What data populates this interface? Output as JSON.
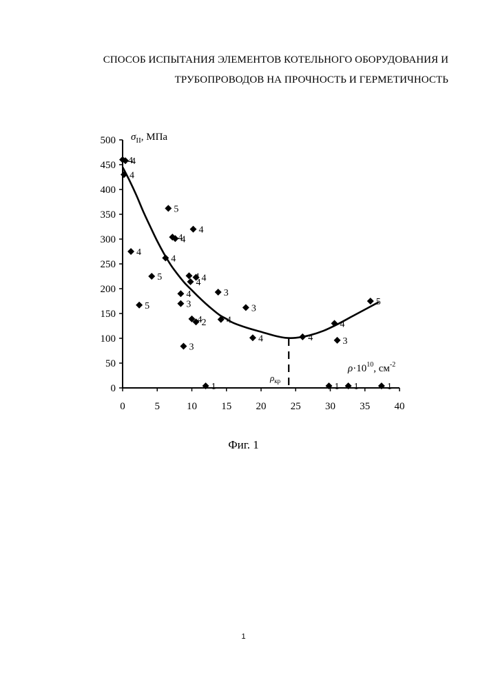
{
  "document": {
    "title_line1": "СПОСОБ ИСПЫТАНИЯ ЭЛЕМЕНТОВ КОТЕЛЬНОГО ОБОРУДОВАНИЯ И",
    "title_line2": "ТРУБОПРОВОДОВ НА ПРОЧНОСТЬ И ГЕРМЕТИЧНОСТЬ",
    "caption": "Фиг. 1",
    "page_number": "1"
  },
  "chart_data": {
    "type": "scatter",
    "title": "",
    "ylabel_symbol": "σ",
    "ylabel_subscript": "II",
    "ylabel_unit": ", МПа",
    "xlabel_symbol": "ρ",
    "xlabel_mult": "·10",
    "xlabel_exp": "10",
    "xlabel_unit": ", см",
    "xlabel_unit_exp": "-2",
    "critical_label": "ρ",
    "critical_label_sub": "кр",
    "critical_x": 24,
    "xlim": [
      0,
      40
    ],
    "ylim": [
      0,
      500
    ],
    "xticks": [
      "0",
      "5",
      "10",
      "15",
      "20",
      "25",
      "30",
      "35",
      "40"
    ],
    "yticks": [
      "0",
      "50",
      "100",
      "150",
      "200",
      "250",
      "300",
      "350",
      "400",
      "450",
      "500"
    ],
    "grid": false,
    "points": [
      {
        "x": 0.0,
        "y": 460,
        "label": "4"
      },
      {
        "x": 0.4,
        "y": 458,
        "label": "4"
      },
      {
        "x": 0.2,
        "y": 430,
        "label": "4"
      },
      {
        "x": 1.2,
        "y": 275,
        "label": "4"
      },
      {
        "x": 2.4,
        "y": 167,
        "label": "5"
      },
      {
        "x": 4.2,
        "y": 225,
        "label": "5"
      },
      {
        "x": 6.2,
        "y": 262,
        "label": "4"
      },
      {
        "x": 6.6,
        "y": 362,
        "label": "5"
      },
      {
        "x": 7.2,
        "y": 304,
        "label": "4"
      },
      {
        "x": 7.6,
        "y": 301,
        "label": "4"
      },
      {
        "x": 8.4,
        "y": 190,
        "label": "4"
      },
      {
        "x": 8.4,
        "y": 170,
        "label": "3"
      },
      {
        "x": 8.8,
        "y": 84,
        "label": "3"
      },
      {
        "x": 9.6,
        "y": 226,
        "label": "4"
      },
      {
        "x": 9.8,
        "y": 214,
        "label": "4"
      },
      {
        "x": 10.0,
        "y": 139,
        "label": "4"
      },
      {
        "x": 10.2,
        "y": 320,
        "label": "4"
      },
      {
        "x": 10.6,
        "y": 223,
        "label": "4"
      },
      {
        "x": 10.6,
        "y": 133,
        "label": "2"
      },
      {
        "x": 12.0,
        "y": 4,
        "label": "1"
      },
      {
        "x": 13.8,
        "y": 193,
        "label": "3"
      },
      {
        "x": 14.2,
        "y": 138,
        "label": "4"
      },
      {
        "x": 17.8,
        "y": 162,
        "label": "3"
      },
      {
        "x": 18.8,
        "y": 101,
        "label": "4"
      },
      {
        "x": 26.0,
        "y": 103,
        "label": "4"
      },
      {
        "x": 29.8,
        "y": 4,
        "label": "1"
      },
      {
        "x": 30.6,
        "y": 130,
        "label": "4"
      },
      {
        "x": 31.0,
        "y": 96,
        "label": "3"
      },
      {
        "x": 32.6,
        "y": 4,
        "label": "1"
      },
      {
        "x": 35.8,
        "y": 175,
        "label": "5"
      },
      {
        "x": 37.4,
        "y": 4,
        "label": "1"
      }
    ],
    "trend": {
      "x": [
        0.0,
        1.0,
        2.0,
        3.0,
        4.0,
        5.0,
        6.0,
        7.0,
        8.0,
        9.0,
        10.0,
        11.0,
        12.0,
        13.0,
        14.0,
        15.0,
        16.0,
        18.0,
        20.0,
        22.0,
        23.5,
        25.0,
        27.0,
        29.0,
        31.0,
        33.0,
        35.0,
        37.0
      ],
      "y": [
        445,
        418,
        388,
        355,
        325,
        296,
        270,
        247,
        228,
        211,
        197,
        183,
        170,
        158,
        147,
        139,
        131,
        121,
        113,
        105,
        101,
        101,
        106,
        115,
        128,
        143,
        158,
        173
      ]
    },
    "series_style": {
      "marker_color": "#000000",
      "line_color": "#000000"
    }
  }
}
